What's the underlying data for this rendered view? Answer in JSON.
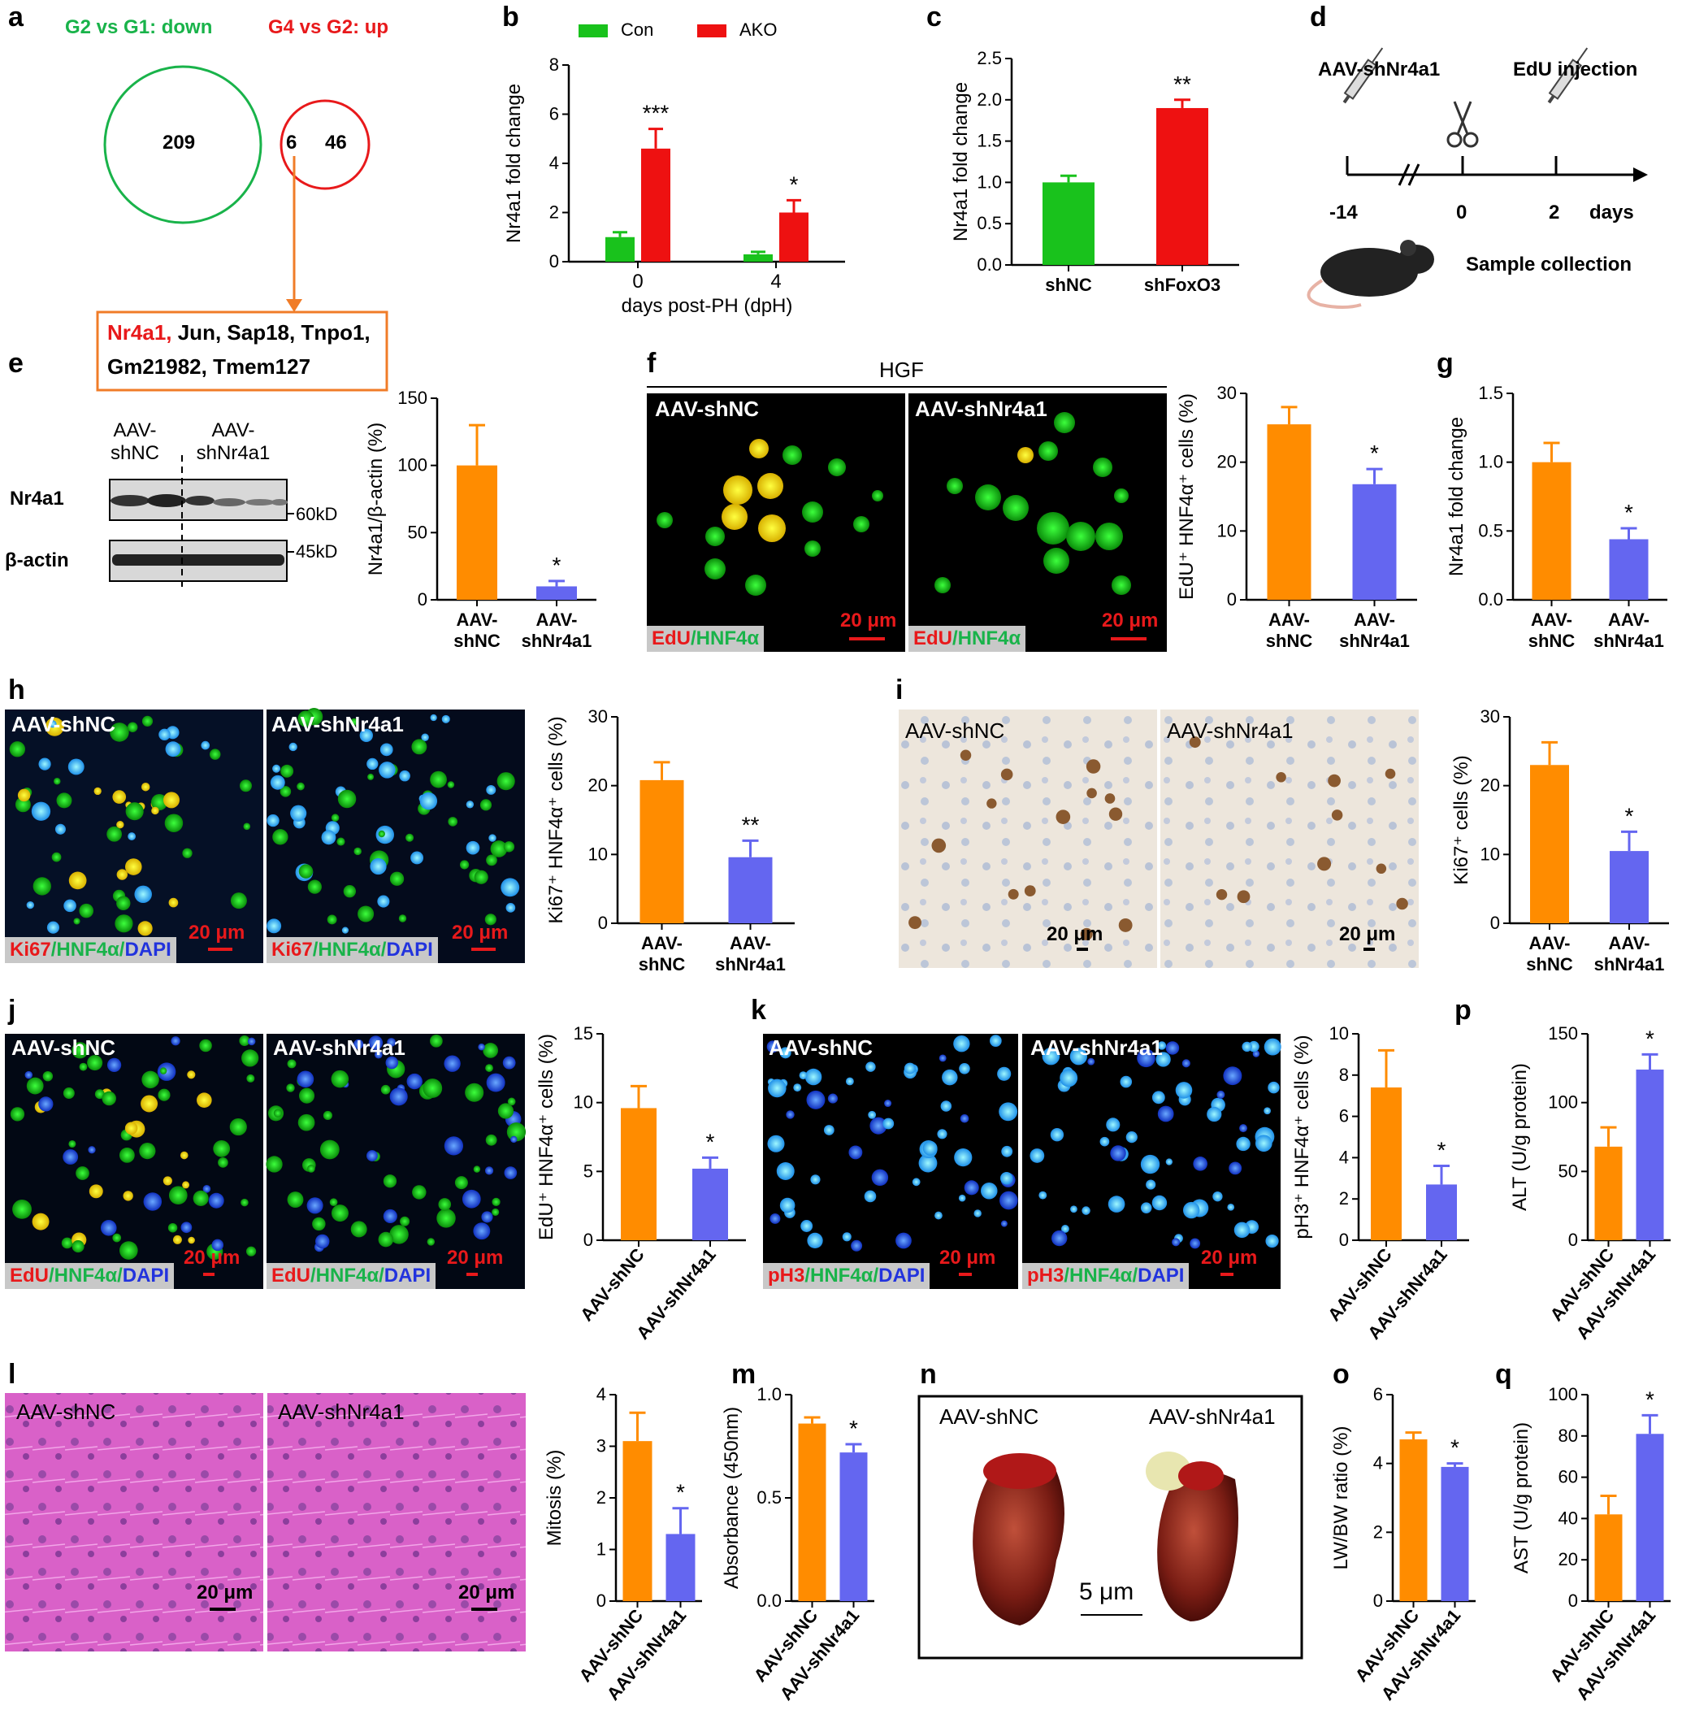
{
  "colors": {
    "green": "#19c21c",
    "red": "#ee1111",
    "orange": "#ff8c00",
    "blue": "#6466f0",
    "venn_green": "#19b34a",
    "venn_red": "#e8191b",
    "box_orange": "#f07c28"
  },
  "panel_a": {
    "letter": "a",
    "left_label": "G2 vs G1: down",
    "right_label": "G4 vs G2: up",
    "left_only": "209",
    "overlap": "6",
    "right_only": "46",
    "highlight_gene": "Nr4a1,",
    "genes_line1_rest": " Jun, Sap18, Tnpo1,",
    "genes_line2": "Gm21982, Tmem127"
  },
  "panel_b": {
    "letter": "b",
    "legend": [
      "Con",
      "AKO"
    ],
    "ylabel": "Nr4a1 fold change",
    "xlabel": "days post-PH (dpH)"
  },
  "panel_c": {
    "letter": "c",
    "ylabel": "Nr4a1 fold change"
  },
  "panel_d": {
    "letter": "d",
    "aav": "AAV-shNr4a1",
    "edu": "EdU injection",
    "t1": "-14",
    "t2": "0",
    "t3": "2",
    "unit": "days",
    "sample": "Sample collection"
  },
  "panel_e": {
    "letter": "e",
    "lane1": "AAV-",
    "lane1b": "shNC",
    "lane2": "AAV-",
    "lane2b": "shNr4a1",
    "row1": "Nr4a1",
    "row2": "β-actin",
    "mw1": "60kD",
    "mw2": "45kD",
    "ylabel": "Nr4a1/β-actin (%)"
  },
  "panel_f": {
    "letter": "f",
    "treatment": "HGF",
    "img1": "AAV-shNC",
    "img2": "AAV-shNr4a1",
    "stain_a": "EdU",
    "stain_b": "/HNF4α",
    "scale": "20 μm",
    "ylabel": "EdU⁺ HNF4α⁺ cells (%)"
  },
  "panel_g": {
    "letter": "g",
    "ylabel": "Nr4a1 fold change"
  },
  "panel_h": {
    "letter": "h",
    "img1": "AAV-shNC",
    "img2": "AAV-shNr4a1",
    "stain_a": "Ki67",
    "stain_b": "/HNF4α/",
    "stain_c": "DAPI",
    "scale": "20 μm",
    "ylabel": "Ki67⁺ HNF4α⁺ cells (%)"
  },
  "panel_i": {
    "letter": "i",
    "img1": "AAV-shNC",
    "img2": "AAV-shNr4a1",
    "scale": "20 μm",
    "ylabel": "Ki67⁺ cells (%)"
  },
  "panel_j": {
    "letter": "j",
    "img1": "AAV-shNC",
    "img2": "AAV-shNr4a1",
    "stain_a": "EdU",
    "stain_b": "/HNF4α/",
    "stain_c": "DAPI",
    "scale": "20 μm",
    "ylabel": "EdU⁺ HNF4α⁺ cells (%)"
  },
  "panel_k": {
    "letter": "k",
    "img1": "AAV-shNC",
    "img2": "AAV-shNr4a1",
    "stain_a": "pH3",
    "stain_b": "/HNF4α/",
    "stain_c": "DAPI",
    "scale": "20 μm",
    "ylabel": "pH3⁺ HNF4α⁺ cells (%)"
  },
  "panel_l": {
    "letter": "l",
    "img1": "AAV-shNC",
    "img2": "AAV-shNr4a1",
    "scale": "20 μm",
    "ylabel": "Mitosis (%)"
  },
  "panel_m": {
    "letter": "m",
    "ylabel": "Absorbance (450nm)"
  },
  "panel_n": {
    "letter": "n",
    "img1": "AAV-shNC",
    "img2": "AAV-shNr4a1",
    "scale": "5 μm"
  },
  "panel_o": {
    "letter": "o",
    "ylabel": "LW/BW ratio (%)"
  },
  "panel_p": {
    "letter": "p",
    "ylabel": "ALT (U/g protein)"
  },
  "panel_q": {
    "letter": "q",
    "ylabel": "AST (U/g protein)"
  },
  "chart_data": [
    {
      "id": "b",
      "type": "bar",
      "categories": [
        "0",
        "4"
      ],
      "series": [
        {
          "name": "Con",
          "values": [
            1.0,
            0.3
          ],
          "errors": [
            0.2,
            0.1
          ]
        },
        {
          "name": "AKO",
          "values": [
            4.6,
            2.0
          ],
          "errors": [
            0.8,
            0.5
          ]
        }
      ],
      "sig": [
        "***",
        "*"
      ],
      "ylim": [
        0,
        8
      ],
      "yticks": [
        "0",
        "2",
        "4",
        "6",
        "8"
      ],
      "xlabel": "days post-PH (dpH)",
      "ylabel": "Nr4a1 fold change"
    },
    {
      "id": "c",
      "type": "bar",
      "categories": [
        "shNC",
        "shFoxO3"
      ],
      "values": [
        1.0,
        1.9
      ],
      "errors": [
        0.08,
        0.1
      ],
      "sig": [
        "",
        "**"
      ],
      "ylim": [
        0,
        2.5
      ],
      "yticks": [
        "0.0",
        "0.5",
        "1.0",
        "1.5",
        "2.0",
        "2.5"
      ],
      "ylabel": "Nr4a1 fold change"
    },
    {
      "id": "e",
      "type": "bar",
      "categories": [
        "AAV-|shNC",
        "AAV-|shNr4a1"
      ],
      "values": [
        100,
        10
      ],
      "errors": [
        30,
        4
      ],
      "sig": [
        "",
        "*"
      ],
      "ylim": [
        0,
        150
      ],
      "yticks": [
        "0",
        "50",
        "100",
        "150"
      ],
      "ylabel": "Nr4a1/β-actin (%)"
    },
    {
      "id": "f",
      "type": "bar",
      "categories": [
        "AAV-|shNC",
        "AAV-|shNr4a1"
      ],
      "values": [
        25.5,
        16.8
      ],
      "errors": [
        2.5,
        2.2
      ],
      "sig": [
        "",
        "*"
      ],
      "ylim": [
        0,
        30
      ],
      "yticks": [
        "0",
        "10",
        "20",
        "30"
      ],
      "ylabel": "EdU⁺ HNF4α⁺ cells (%)"
    },
    {
      "id": "g",
      "type": "bar",
      "categories": [
        "AAV-|shNC",
        "AAV-|shNr4a1"
      ],
      "values": [
        1.0,
        0.44
      ],
      "errors": [
        0.14,
        0.08
      ],
      "sig": [
        "",
        "*"
      ],
      "ylim": [
        0,
        1.5
      ],
      "yticks": [
        "0.0",
        "0.5",
        "1.0",
        "1.5"
      ],
      "ylabel": "Nr4a1 fold change"
    },
    {
      "id": "h",
      "type": "bar",
      "categories": [
        "AAV-|shNC",
        "AAV-|shNr4a1"
      ],
      "values": [
        20.8,
        9.6
      ],
      "errors": [
        2.6,
        2.4
      ],
      "sig": [
        "",
        "**"
      ],
      "ylim": [
        0,
        30
      ],
      "yticks": [
        "0",
        "10",
        "20",
        "30"
      ],
      "ylabel": "Ki67⁺ HNF4α⁺ cells (%)"
    },
    {
      "id": "i",
      "type": "bar",
      "categories": [
        "AAV-|shNC",
        "AAV-|shNr4a1"
      ],
      "values": [
        23,
        10.5
      ],
      "errors": [
        3.3,
        2.8
      ],
      "sig": [
        "",
        "*"
      ],
      "ylim": [
        0,
        30
      ],
      "yticks": [
        "0",
        "10",
        "20",
        "30"
      ],
      "ylabel": "Ki67⁺ cells (%)"
    },
    {
      "id": "j",
      "type": "bar",
      "categories": [
        "AAV-shNC",
        "AAV-shNr4a1"
      ],
      "values": [
        9.6,
        5.2
      ],
      "errors": [
        1.6,
        0.8
      ],
      "sig": [
        "",
        "*"
      ],
      "ylim": [
        0,
        15
      ],
      "yticks": [
        "0",
        "5",
        "10",
        "15"
      ],
      "ylabel": "EdU⁺ HNF4α⁺ cells (%)",
      "rot": true
    },
    {
      "id": "k",
      "type": "bar",
      "categories": [
        "AAV-shNC",
        "AAV-shNr4a1"
      ],
      "values": [
        7.4,
        2.7
      ],
      "errors": [
        1.8,
        0.9
      ],
      "sig": [
        "",
        "*"
      ],
      "ylim": [
        0,
        10
      ],
      "yticks": [
        "0",
        "2",
        "4",
        "6",
        "8",
        "10"
      ],
      "ylabel": "pH3⁺ HNF4α⁺ cells (%)",
      "rot": true
    },
    {
      "id": "p",
      "type": "bar",
      "categories": [
        "AAV-shNC",
        "AAV-shNr4a1"
      ],
      "values": [
        68,
        124
      ],
      "errors": [
        14,
        11
      ],
      "sig": [
        "",
        "*"
      ],
      "ylim": [
        0,
        150
      ],
      "yticks": [
        "0",
        "50",
        "100",
        "150"
      ],
      "ylabel": "ALT (U/g protein)",
      "rot": true
    },
    {
      "id": "l",
      "type": "bar",
      "categories": [
        "AAV-shNC",
        "AAV-shNr4a1"
      ],
      "values": [
        3.1,
        1.3
      ],
      "errors": [
        0.55,
        0.5
      ],
      "sig": [
        "",
        "*"
      ],
      "ylim": [
        0,
        4
      ],
      "yticks": [
        "0",
        "1",
        "2",
        "3",
        "4"
      ],
      "ylabel": "Mitosis (%)",
      "rot": true
    },
    {
      "id": "m",
      "type": "bar",
      "categories": [
        "AAV-shNC",
        "AAV-shNr4a1"
      ],
      "values": [
        0.86,
        0.72
      ],
      "errors": [
        0.03,
        0.04
      ],
      "sig": [
        "",
        "*"
      ],
      "ylim": [
        0,
        1.0
      ],
      "yticks": [
        "0.0",
        "0.5",
        "1.0"
      ],
      "ylabel": "Absorbance (450nm)",
      "rot": true
    },
    {
      "id": "o",
      "type": "bar",
      "categories": [
        "AAV-shNC",
        "AAV-shNr4a1"
      ],
      "values": [
        4.7,
        3.9
      ],
      "errors": [
        0.2,
        0.1
      ],
      "sig": [
        "",
        "*"
      ],
      "ylim": [
        0,
        6
      ],
      "yticks": [
        "0",
        "2",
        "4",
        "6"
      ],
      "ylabel": "LW/BW ratio (%)",
      "rot": true
    },
    {
      "id": "q",
      "type": "bar",
      "categories": [
        "AAV-shNC",
        "AAV-shNr4a1"
      ],
      "values": [
        42,
        81
      ],
      "errors": [
        9,
        9
      ],
      "sig": [
        "",
        "*"
      ],
      "ylim": [
        0,
        100
      ],
      "yticks": [
        "0",
        "20",
        "40",
        "60",
        "80",
        "100"
      ],
      "ylabel": "AST (U/g protein)",
      "rot": true
    }
  ]
}
